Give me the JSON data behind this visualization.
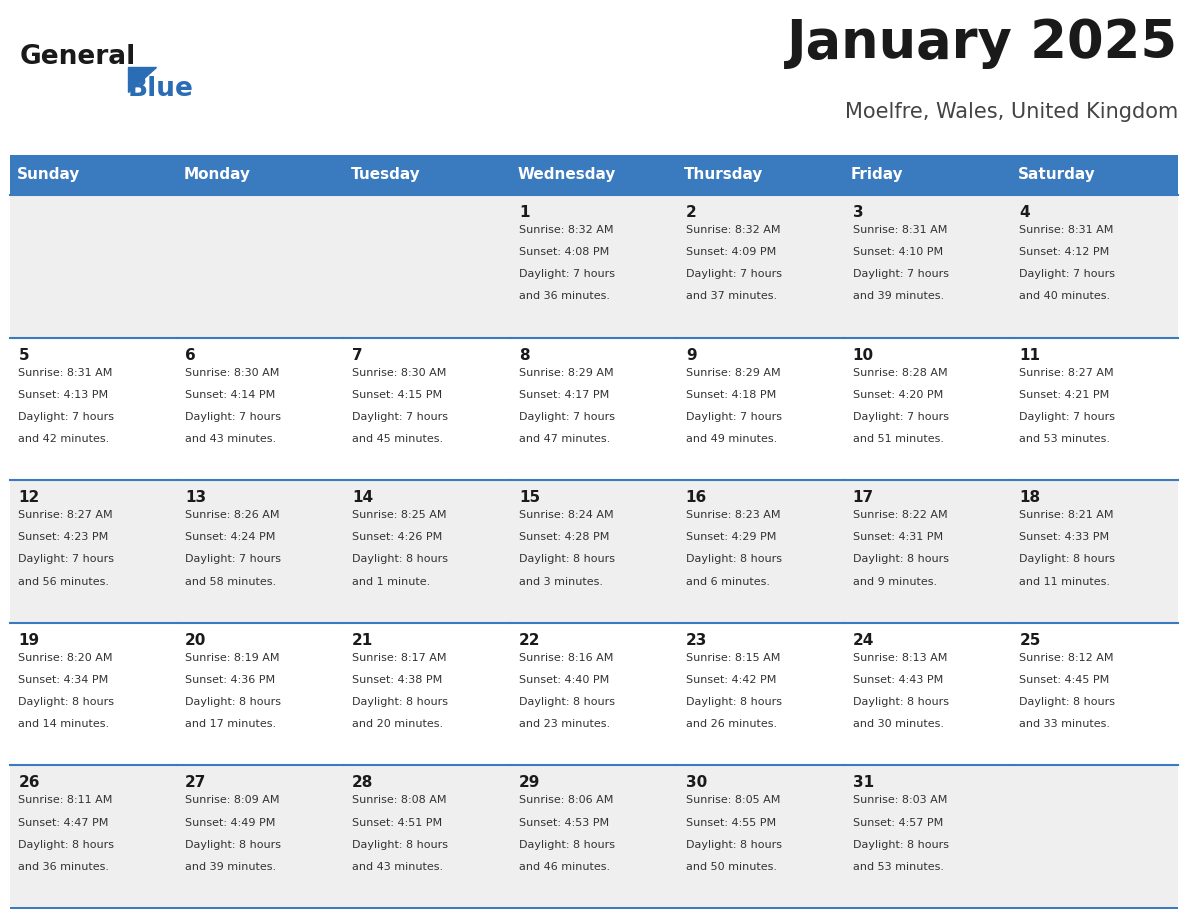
{
  "title": "January 2025",
  "subtitle": "Moelfre, Wales, United Kingdom",
  "header_color": "#3a7abf",
  "header_text_color": "#ffffff",
  "cell_bg_color_odd": "#efefef",
  "cell_bg_color_even": "#ffffff",
  "border_color": "#3a7abf",
  "day_names": [
    "Sunday",
    "Monday",
    "Tuesday",
    "Wednesday",
    "Thursday",
    "Friday",
    "Saturday"
  ],
  "title_color": "#1a1a1a",
  "subtitle_color": "#444444",
  "day_number_color": "#1a1a1a",
  "cell_text_color": "#333333",
  "logo_general_color": "#1a1a1a",
  "logo_blue_color": "#2a6db5",
  "weeks": [
    [
      {
        "day": null,
        "sunrise": null,
        "sunset": null,
        "daylight": null
      },
      {
        "day": null,
        "sunrise": null,
        "sunset": null,
        "daylight": null
      },
      {
        "day": null,
        "sunrise": null,
        "sunset": null,
        "daylight": null
      },
      {
        "day": 1,
        "sunrise": "8:32 AM",
        "sunset": "4:08 PM",
        "daylight": "7 hours",
        "daylight2": "and 36 minutes."
      },
      {
        "day": 2,
        "sunrise": "8:32 AM",
        "sunset": "4:09 PM",
        "daylight": "7 hours",
        "daylight2": "and 37 minutes."
      },
      {
        "day": 3,
        "sunrise": "8:31 AM",
        "sunset": "4:10 PM",
        "daylight": "7 hours",
        "daylight2": "and 39 minutes."
      },
      {
        "day": 4,
        "sunrise": "8:31 AM",
        "sunset": "4:12 PM",
        "daylight": "7 hours",
        "daylight2": "and 40 minutes."
      }
    ],
    [
      {
        "day": 5,
        "sunrise": "8:31 AM",
        "sunset": "4:13 PM",
        "daylight": "7 hours",
        "daylight2": "and 42 minutes."
      },
      {
        "day": 6,
        "sunrise": "8:30 AM",
        "sunset": "4:14 PM",
        "daylight": "7 hours",
        "daylight2": "and 43 minutes."
      },
      {
        "day": 7,
        "sunrise": "8:30 AM",
        "sunset": "4:15 PM",
        "daylight": "7 hours",
        "daylight2": "and 45 minutes."
      },
      {
        "day": 8,
        "sunrise": "8:29 AM",
        "sunset": "4:17 PM",
        "daylight": "7 hours",
        "daylight2": "and 47 minutes."
      },
      {
        "day": 9,
        "sunrise": "8:29 AM",
        "sunset": "4:18 PM",
        "daylight": "7 hours",
        "daylight2": "and 49 minutes."
      },
      {
        "day": 10,
        "sunrise": "8:28 AM",
        "sunset": "4:20 PM",
        "daylight": "7 hours",
        "daylight2": "and 51 minutes."
      },
      {
        "day": 11,
        "sunrise": "8:27 AM",
        "sunset": "4:21 PM",
        "daylight": "7 hours",
        "daylight2": "and 53 minutes."
      }
    ],
    [
      {
        "day": 12,
        "sunrise": "8:27 AM",
        "sunset": "4:23 PM",
        "daylight": "7 hours",
        "daylight2": "and 56 minutes."
      },
      {
        "day": 13,
        "sunrise": "8:26 AM",
        "sunset": "4:24 PM",
        "daylight": "7 hours",
        "daylight2": "and 58 minutes."
      },
      {
        "day": 14,
        "sunrise": "8:25 AM",
        "sunset": "4:26 PM",
        "daylight": "8 hours",
        "daylight2": "and 1 minute."
      },
      {
        "day": 15,
        "sunrise": "8:24 AM",
        "sunset": "4:28 PM",
        "daylight": "8 hours",
        "daylight2": "and 3 minutes."
      },
      {
        "day": 16,
        "sunrise": "8:23 AM",
        "sunset": "4:29 PM",
        "daylight": "8 hours",
        "daylight2": "and 6 minutes."
      },
      {
        "day": 17,
        "sunrise": "8:22 AM",
        "sunset": "4:31 PM",
        "daylight": "8 hours",
        "daylight2": "and 9 minutes."
      },
      {
        "day": 18,
        "sunrise": "8:21 AM",
        "sunset": "4:33 PM",
        "daylight": "8 hours",
        "daylight2": "and 11 minutes."
      }
    ],
    [
      {
        "day": 19,
        "sunrise": "8:20 AM",
        "sunset": "4:34 PM",
        "daylight": "8 hours",
        "daylight2": "and 14 minutes."
      },
      {
        "day": 20,
        "sunrise": "8:19 AM",
        "sunset": "4:36 PM",
        "daylight": "8 hours",
        "daylight2": "and 17 minutes."
      },
      {
        "day": 21,
        "sunrise": "8:17 AM",
        "sunset": "4:38 PM",
        "daylight": "8 hours",
        "daylight2": "and 20 minutes."
      },
      {
        "day": 22,
        "sunrise": "8:16 AM",
        "sunset": "4:40 PM",
        "daylight": "8 hours",
        "daylight2": "and 23 minutes."
      },
      {
        "day": 23,
        "sunrise": "8:15 AM",
        "sunset": "4:42 PM",
        "daylight": "8 hours",
        "daylight2": "and 26 minutes."
      },
      {
        "day": 24,
        "sunrise": "8:13 AM",
        "sunset": "4:43 PM",
        "daylight": "8 hours",
        "daylight2": "and 30 minutes."
      },
      {
        "day": 25,
        "sunrise": "8:12 AM",
        "sunset": "4:45 PM",
        "daylight": "8 hours",
        "daylight2": "and 33 minutes."
      }
    ],
    [
      {
        "day": 26,
        "sunrise": "8:11 AM",
        "sunset": "4:47 PM",
        "daylight": "8 hours",
        "daylight2": "and 36 minutes."
      },
      {
        "day": 27,
        "sunrise": "8:09 AM",
        "sunset": "4:49 PM",
        "daylight": "8 hours",
        "daylight2": "and 39 minutes."
      },
      {
        "day": 28,
        "sunrise": "8:08 AM",
        "sunset": "4:51 PM",
        "daylight": "8 hours",
        "daylight2": "and 43 minutes."
      },
      {
        "day": 29,
        "sunrise": "8:06 AM",
        "sunset": "4:53 PM",
        "daylight": "8 hours",
        "daylight2": "and 46 minutes."
      },
      {
        "day": 30,
        "sunrise": "8:05 AM",
        "sunset": "4:55 PM",
        "daylight": "8 hours",
        "daylight2": "and 50 minutes."
      },
      {
        "day": 31,
        "sunrise": "8:03 AM",
        "sunset": "4:57 PM",
        "daylight": "8 hours",
        "daylight2": "and 53 minutes."
      },
      {
        "day": null,
        "sunrise": null,
        "sunset": null,
        "daylight": null,
        "daylight2": null
      }
    ]
  ]
}
